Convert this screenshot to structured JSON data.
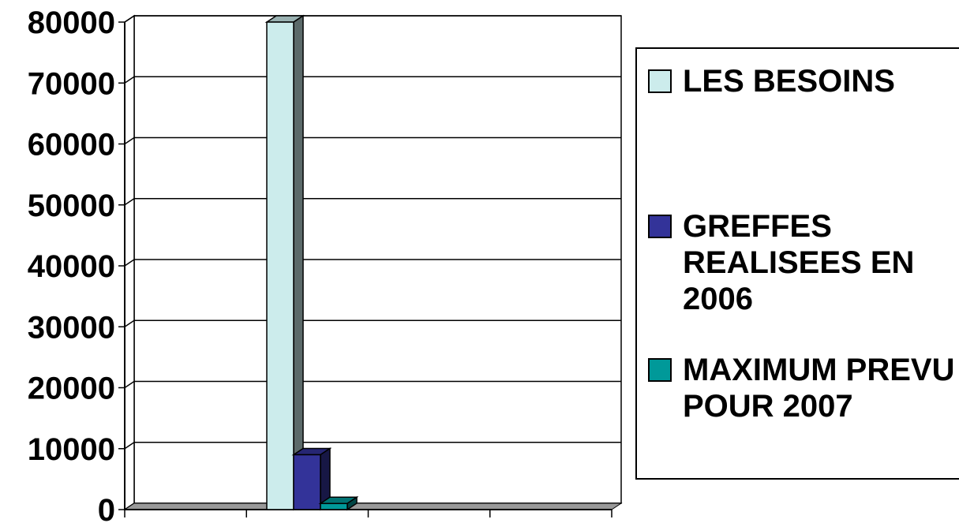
{
  "chart_data": {
    "type": "bar",
    "categories": [
      ""
    ],
    "series": [
      {
        "name": "LES BESOINS",
        "values": [
          80000
        ],
        "color": "#CCECEC"
      },
      {
        "name": "GREFFES REALISEES EN 2006",
        "values": [
          9000
        ],
        "color": "#333399"
      },
      {
        "name": "MAXIMUM PREVU POUR 2007",
        "values": [
          1000
        ],
        "color": "#009999"
      }
    ],
    "ylim": [
      0,
      80000
    ],
    "yticks": [
      "0",
      "10000",
      "20000",
      "30000",
      "40000",
      "50000",
      "60000",
      "70000",
      "80000"
    ],
    "grid": true,
    "legend": "right",
    "style": "3d-column"
  },
  "legend": {
    "items": [
      {
        "label": "LES BESOINS",
        "color": "#CCECEC"
      },
      {
        "label": "GREFFES REALISEES EN 2006",
        "color": "#333399"
      },
      {
        "label": "MAXIMUM PREVU POUR 2007",
        "color": "#009999"
      }
    ]
  }
}
